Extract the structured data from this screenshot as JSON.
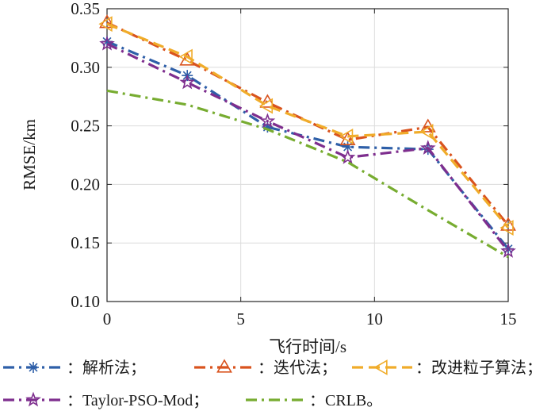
{
  "chart_data": {
    "type": "line",
    "xlabel": "飞行时间/s",
    "ylabel": "RMSE/km",
    "xlim": [
      0,
      15
    ],
    "ylim": [
      0.1,
      0.35
    ],
    "xticks": [
      "0",
      "5",
      "10",
      "15"
    ],
    "yticks": [
      "0.10",
      "0.15",
      "0.20",
      "0.25",
      "0.30",
      "0.35"
    ],
    "grid": true,
    "legend_position": "bottom",
    "series": [
      {
        "name": "：解析法；",
        "color": "#2e5fa8",
        "marker": "asterisk",
        "line_style": "dash-dot",
        "x": [
          0,
          3,
          6,
          9,
          12,
          15
        ],
        "y": [
          0.322,
          0.293,
          0.249,
          0.232,
          0.23,
          0.145
        ]
      },
      {
        "name": "：迭代法；",
        "color": "#d9531e",
        "marker": "triangle",
        "line_style": "dash-dot",
        "x": [
          0,
          3,
          6,
          9,
          12,
          15
        ],
        "y": [
          0.338,
          0.306,
          0.27,
          0.238,
          0.249,
          0.165
        ]
      },
      {
        "name": "：改进粒子算法；",
        "color": "#f0ac2a",
        "marker": "triangle-left",
        "line_style": "dash",
        "x": [
          0,
          3,
          6,
          9,
          12,
          15
        ],
        "y": [
          0.337,
          0.309,
          0.267,
          0.241,
          0.245,
          0.163
        ]
      },
      {
        "name": "：Taylor-PSO-Mod；",
        "color": "#7e2e8e",
        "marker": "pentagram",
        "line_style": "dash-dot",
        "x": [
          0,
          3,
          6,
          9,
          12,
          15
        ],
        "y": [
          0.32,
          0.287,
          0.254,
          0.223,
          0.231,
          0.143
        ]
      },
      {
        "name": "：CRLB。",
        "color": "#77ac30",
        "marker": "none",
        "line_style": "dash-dot",
        "x": [
          0,
          3,
          6,
          9,
          12,
          15
        ],
        "y": [
          0.28,
          0.268,
          0.247,
          0.219,
          0.178,
          0.138
        ]
      }
    ]
  }
}
